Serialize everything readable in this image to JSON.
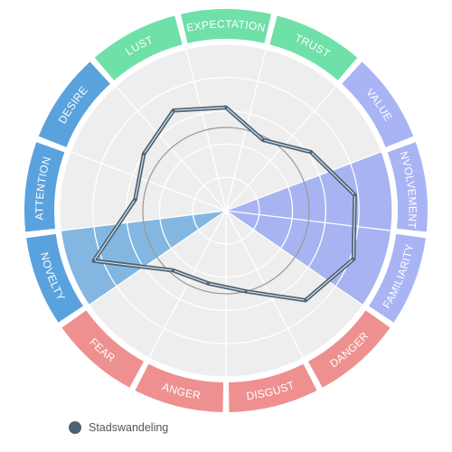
{
  "chart_data": {
    "type": "radar",
    "dimensions": [
      "EXPECTATION",
      "TRUST",
      "VALUE",
      "INVOLVEMENT",
      "FAMILIARITY",
      "DANGER",
      "DISGUST",
      "ANGER",
      "FEAR",
      "NOVELTY",
      "ATTENTION",
      "DESIRE",
      "LUST"
    ],
    "groups": [
      {
        "color": "#6fe0a8",
        "labels": [
          "LUST",
          "EXPECTATION",
          "TRUST"
        ]
      },
      {
        "color": "#a9b4f5",
        "labels": [
          "VALUE",
          "INVOLVEMENT",
          "FAMILIARITY"
        ]
      },
      {
        "color": "#ee9090",
        "labels": [
          "DANGER",
          "DISGUST",
          "ANGER",
          "FEAR"
        ]
      },
      {
        "color": "#5aa2de",
        "labels": [
          "NOVELTY",
          "ATTENTION",
          "DESIRE"
        ]
      }
    ],
    "highlighted": [
      {
        "label": "INVOLVEMENT",
        "value": 1.0,
        "color": "#8d9cf3"
      },
      {
        "label": "FAMILIARITY",
        "value": 1.0,
        "color": "#8d9cf3"
      },
      {
        "label": "NOVELTY",
        "value": 1.0,
        "color": "#5aa2de"
      }
    ],
    "reference_circle": 0.5,
    "series": [
      {
        "name": "Stadswandeling",
        "color": "#4b6275",
        "values": [
          0.62,
          0.48,
          0.62,
          0.78,
          0.82,
          0.72,
          0.5,
          0.45,
          0.48,
          0.85,
          0.55,
          0.6,
          0.68
        ]
      }
    ],
    "legend_position": "bottom-left"
  }
}
